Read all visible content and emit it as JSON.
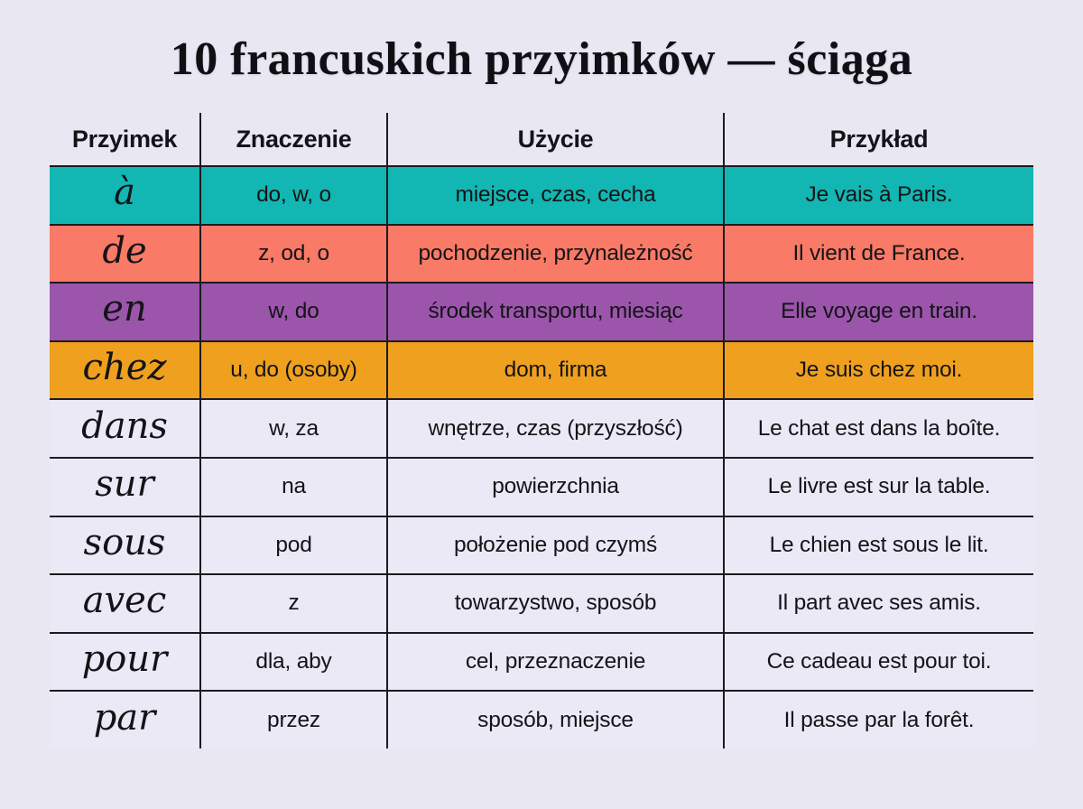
{
  "page": {
    "title": "10 francuskich przyimków — ściąga",
    "background_color": "#e9e7f2",
    "line_color": "#1b1b20",
    "text_color": "#141418"
  },
  "table": {
    "headers": [
      "Przyimek",
      "Znaczenie",
      "Użycie",
      "Przykład"
    ],
    "rows": [
      {
        "preposition": "à",
        "meaning": "do, w, o",
        "usage": "miejsce, czas, cecha",
        "example": "Je vais à Paris.",
        "color": "#12b6b2"
      },
      {
        "preposition": "de",
        "meaning": "z, od, o",
        "usage": "pochodzenie, przynależność",
        "example": "Il vient de France.",
        "color": "#f97a66"
      },
      {
        "preposition": "en",
        "meaning": "w, do",
        "usage": "środek transportu, miesiąc",
        "example": "Elle voyage en train.",
        "color": "#9b55ab"
      },
      {
        "preposition": "chez",
        "meaning": "u, do (osoby)",
        "usage": "dom, firma",
        "example": "Je suis chez moi.",
        "color": "#efa01e"
      },
      {
        "preposition": "dans",
        "meaning": "w, za",
        "usage": "wnętrze, czas (przyszłość)",
        "example": "Le chat est dans la boîte.",
        "color": "#eae9f5"
      },
      {
        "preposition": "sur",
        "meaning": "na",
        "usage": "powierzchnia",
        "example": "Le livre est sur la table.",
        "color": "#eae9f5"
      },
      {
        "preposition": "sous",
        "meaning": "pod",
        "usage": "położenie pod czymś",
        "example": "Le chien est sous le lit.",
        "color": "#eae9f5"
      },
      {
        "preposition": "avec",
        "meaning": "z",
        "usage": "towarzystwo, sposób",
        "example": "Il part avec ses amis.",
        "color": "#eae9f5"
      },
      {
        "preposition": "pour",
        "meaning": "dla, aby",
        "usage": "cel, przeznaczenie",
        "example": "Ce cadeau est pour toi.",
        "color": "#eae9f5"
      },
      {
        "preposition": "par",
        "meaning": "przez",
        "usage": "sposób, miejsce",
        "example": "Il passe par la forêt.",
        "color": "#eae9f5"
      }
    ]
  }
}
